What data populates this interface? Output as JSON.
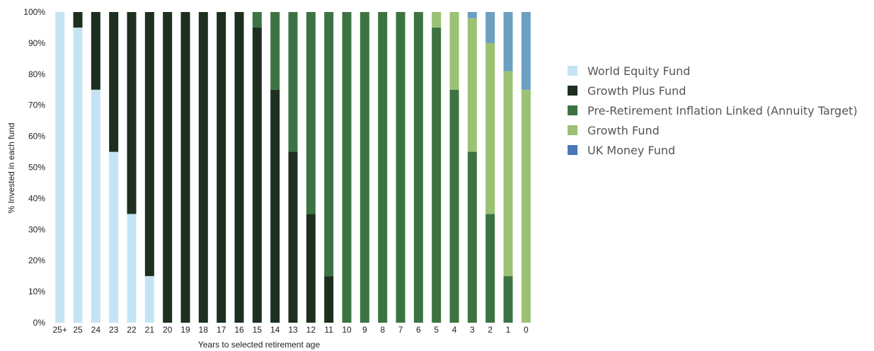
{
  "chart_data": {
    "type": "bar",
    "stacked": true,
    "xlabel": "Years to selected retirement age",
    "ylabel": "% Invested in each fund",
    "ylim": [
      0,
      100
    ],
    "yticks": [
      "0%",
      "10%",
      "20%",
      "30%",
      "40%",
      "50%",
      "60%",
      "70%",
      "80%",
      "90%",
      "100%"
    ],
    "categories": [
      "25+",
      "25",
      "24",
      "23",
      "22",
      "21",
      "20",
      "19",
      "18",
      "17",
      "16",
      "15",
      "14",
      "13",
      "12",
      "11",
      "10",
      "9",
      "8",
      "7",
      "6",
      "5",
      "4",
      "3",
      "2",
      "1",
      "0"
    ],
    "series": [
      {
        "name": "World Equity Fund",
        "color": "#c5e4f3",
        "values": [
          100,
          95,
          75,
          55,
          35,
          15,
          0,
          0,
          0,
          0,
          0,
          0,
          0,
          0,
          0,
          0,
          0,
          0,
          0,
          0,
          0,
          0,
          0,
          0,
          0,
          0,
          0
        ]
      },
      {
        "name": "Growth Plus Fund",
        "color": "#1e2f1f",
        "values": [
          0,
          5,
          25,
          45,
          65,
          85,
          100,
          100,
          100,
          100,
          100,
          95,
          75,
          55,
          35,
          15,
          0,
          0,
          0,
          0,
          0,
          0,
          0,
          0,
          0,
          0,
          0
        ]
      },
      {
        "name": "Pre-Retirement Inflation Linked (Annuity Target)",
        "color": "#3d7343",
        "values": [
          0,
          0,
          0,
          0,
          0,
          0,
          0,
          0,
          0,
          0,
          0,
          5,
          25,
          45,
          65,
          85,
          100,
          100,
          100,
          100,
          100,
          95,
          75,
          55,
          35,
          15,
          0
        ]
      },
      {
        "name": "Growth Fund",
        "color": "#9bc174",
        "values": [
          0,
          0,
          0,
          0,
          0,
          0,
          0,
          0,
          0,
          0,
          0,
          0,
          0,
          0,
          0,
          0,
          0,
          0,
          0,
          0,
          0,
          5,
          25,
          43,
          55,
          66,
          75
        ]
      },
      {
        "name": "UK Money Fund",
        "color": "#6c9fc0",
        "values": [
          0,
          0,
          0,
          0,
          0,
          0,
          0,
          0,
          0,
          0,
          0,
          0,
          0,
          0,
          0,
          0,
          0,
          0,
          0,
          0,
          0,
          0,
          0,
          2,
          10,
          19,
          25
        ]
      }
    ],
    "legend": {
      "placement": "right",
      "items": [
        {
          "label": "World Equity Fund",
          "color": "#c5e4f3"
        },
        {
          "label": "Growth Plus Fund",
          "color": "#1e2f1f"
        },
        {
          "label": "Pre-Retirement Inflation Linked (Annuity Target)",
          "color": "#3d7343"
        },
        {
          "label": "Growth Fund",
          "color": "#9bc174"
        },
        {
          "label": "UK Money Fund",
          "color": "#4a78b8"
        }
      ]
    },
    "grid": false
  }
}
